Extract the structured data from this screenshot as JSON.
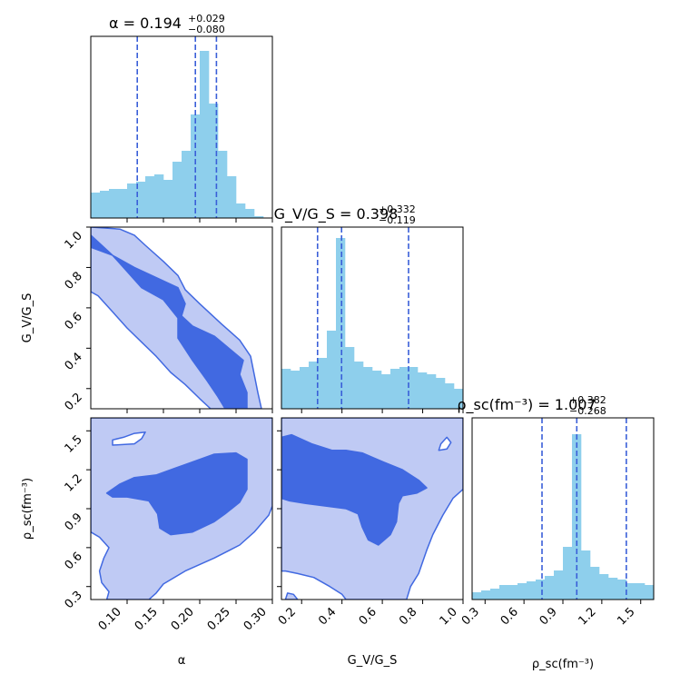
{
  "figure": {
    "colors": {
      "hist_fill": "#8ecfec",
      "quantile_line": "#3a5fd8",
      "contour_inner": "#4169e1",
      "contour_outer": "#bfcaf4",
      "contour_edge": "#4169e1"
    }
  },
  "chart_data": [
    {
      "id": "hist-alpha",
      "type": "bar",
      "title_main": "α = 0.194",
      "title_sup": "+0.029",
      "title_sub": "−0.080",
      "xlim": [
        0.05,
        0.3
      ],
      "bin_width": 0.0125,
      "bins_start": [
        0.05,
        0.0625,
        0.075,
        0.0875,
        0.1,
        0.1125,
        0.125,
        0.1375,
        0.15,
        0.1625,
        0.175,
        0.1875,
        0.2,
        0.2125,
        0.225,
        0.2375,
        0.25,
        0.2625,
        0.275,
        0.2875
      ],
      "values": [
        0.14,
        0.15,
        0.16,
        0.16,
        0.19,
        0.2,
        0.23,
        0.24,
        0.21,
        0.31,
        0.37,
        0.57,
        0.92,
        0.63,
        0.37,
        0.23,
        0.08,
        0.05,
        0.01,
        0.0
      ],
      "quantiles": [
        0.114,
        0.194,
        0.223
      ]
    },
    {
      "id": "hist-gv",
      "type": "bar",
      "title_main": "G_V/G_S = 0.398",
      "title_sup": "+0.332",
      "title_sub": "−0.119",
      "xlim": [
        0.1,
        1.0
      ],
      "bin_width": 0.045,
      "bins_start": [
        0.1,
        0.145,
        0.19,
        0.235,
        0.28,
        0.325,
        0.37,
        0.415,
        0.46,
        0.505,
        0.55,
        0.595,
        0.64,
        0.685,
        0.73,
        0.775,
        0.82,
        0.865,
        0.91,
        0.955
      ],
      "values": [
        0.22,
        0.21,
        0.23,
        0.26,
        0.28,
        0.43,
        0.94,
        0.34,
        0.26,
        0.23,
        0.21,
        0.19,
        0.22,
        0.23,
        0.23,
        0.2,
        0.19,
        0.17,
        0.14,
        0.11
      ],
      "quantiles": [
        0.279,
        0.398,
        0.73
      ]
    },
    {
      "id": "hist-rho",
      "type": "bar",
      "title_main": "ρ_sc(fm⁻³) = 1.007",
      "title_sup": "+0.382",
      "title_sub": "−0.268",
      "xlim": [
        0.2,
        1.6
      ],
      "bin_width": 0.07,
      "bins_start": [
        0.2,
        0.27,
        0.34,
        0.41,
        0.48,
        0.55,
        0.62,
        0.69,
        0.76,
        0.83,
        0.9,
        0.97,
        1.04,
        1.11,
        1.18,
        1.25,
        1.32,
        1.39,
        1.46,
        1.53
      ],
      "values": [
        0.04,
        0.05,
        0.06,
        0.08,
        0.08,
        0.09,
        0.1,
        0.11,
        0.13,
        0.16,
        0.29,
        0.91,
        0.27,
        0.18,
        0.14,
        0.12,
        0.11,
        0.09,
        0.09,
        0.08
      ],
      "quantiles": [
        0.739,
        1.007,
        1.389
      ]
    },
    {
      "id": "contour-gv-alpha",
      "type": "contour",
      "x_param": "alpha",
      "y_param": "gv",
      "xlim": [
        0.05,
        0.3
      ],
      "ylim": [
        0.1,
        1.0
      ],
      "outer": [
        [
          0.05,
          0.68
        ],
        [
          0.06,
          0.66
        ],
        [
          0.08,
          0.58
        ],
        [
          0.1,
          0.5
        ],
        [
          0.12,
          0.43
        ],
        [
          0.14,
          0.36
        ],
        [
          0.16,
          0.28
        ],
        [
          0.18,
          0.22
        ],
        [
          0.2,
          0.15
        ],
        [
          0.215,
          0.1
        ],
        [
          0.285,
          0.1
        ],
        [
          0.28,
          0.18
        ],
        [
          0.275,
          0.27
        ],
        [
          0.27,
          0.36
        ],
        [
          0.255,
          0.44
        ],
        [
          0.23,
          0.52
        ],
        [
          0.2,
          0.62
        ],
        [
          0.18,
          0.69
        ],
        [
          0.17,
          0.76
        ],
        [
          0.15,
          0.83
        ],
        [
          0.125,
          0.91
        ],
        [
          0.11,
          0.96
        ],
        [
          0.09,
          0.99
        ],
        [
          0.05,
          1.0
        ]
      ],
      "inner": [
        [
          0.05,
          0.96
        ],
        [
          0.05,
          0.9
        ],
        [
          0.08,
          0.86
        ],
        [
          0.1,
          0.78
        ],
        [
          0.12,
          0.7
        ],
        [
          0.15,
          0.64
        ],
        [
          0.17,
          0.55
        ],
        [
          0.17,
          0.45
        ],
        [
          0.19,
          0.34
        ],
        [
          0.21,
          0.24
        ],
        [
          0.225,
          0.16
        ],
        [
          0.235,
          0.1
        ],
        [
          0.265,
          0.1
        ],
        [
          0.265,
          0.18
        ],
        [
          0.255,
          0.27
        ],
        [
          0.26,
          0.34
        ],
        [
          0.24,
          0.4
        ],
        [
          0.22,
          0.46
        ],
        [
          0.19,
          0.51
        ],
        [
          0.175,
          0.56
        ],
        [
          0.18,
          0.62
        ],
        [
          0.17,
          0.7
        ],
        [
          0.14,
          0.75
        ],
        [
          0.11,
          0.8
        ],
        [
          0.08,
          0.86
        ]
      ]
    },
    {
      "id": "contour-rho-alpha",
      "type": "contour",
      "x_param": "alpha",
      "y_param": "rho",
      "xlim": [
        0.05,
        0.3
      ],
      "ylim": [
        0.2,
        1.6
      ],
      "outer": [
        [
          0.05,
          1.6
        ],
        [
          0.3,
          1.6
        ],
        [
          0.3,
          0.92
        ],
        [
          0.295,
          0.85
        ],
        [
          0.275,
          0.72
        ],
        [
          0.255,
          0.62
        ],
        [
          0.22,
          0.52
        ],
        [
          0.18,
          0.42
        ],
        [
          0.15,
          0.32
        ],
        [
          0.14,
          0.25
        ],
        [
          0.13,
          0.2
        ],
        [
          0.072,
          0.2
        ],
        [
          0.075,
          0.26
        ],
        [
          0.065,
          0.33
        ],
        [
          0.062,
          0.42
        ],
        [
          0.068,
          0.52
        ],
        [
          0.075,
          0.6
        ],
        [
          0.062,
          0.68
        ],
        [
          0.05,
          0.72
        ]
      ],
      "hole": [
        [
          0.08,
          1.39
        ],
        [
          0.11,
          1.4
        ],
        [
          0.12,
          1.44
        ],
        [
          0.125,
          1.49
        ],
        [
          0.11,
          1.48
        ],
        [
          0.095,
          1.45
        ],
        [
          0.08,
          1.43
        ]
      ],
      "inner": [
        [
          0.072,
          1.02
        ],
        [
          0.09,
          1.09
        ],
        [
          0.11,
          1.14
        ],
        [
          0.14,
          1.16
        ],
        [
          0.165,
          1.21
        ],
        [
          0.19,
          1.26
        ],
        [
          0.22,
          1.32
        ],
        [
          0.25,
          1.33
        ],
        [
          0.265,
          1.28
        ],
        [
          0.265,
          1.05
        ],
        [
          0.255,
          0.95
        ],
        [
          0.235,
          0.86
        ],
        [
          0.22,
          0.8
        ],
        [
          0.19,
          0.72
        ],
        [
          0.16,
          0.7
        ],
        [
          0.145,
          0.75
        ],
        [
          0.142,
          0.86
        ],
        [
          0.13,
          0.96
        ],
        [
          0.1,
          0.99
        ],
        [
          0.08,
          0.99
        ]
      ]
    },
    {
      "id": "contour-rho-gv",
      "type": "contour",
      "x_param": "gv",
      "y_param": "rho",
      "xlim": [
        0.1,
        1.0
      ],
      "ylim": [
        0.2,
        1.6
      ],
      "outer": [
        [
          0.1,
          1.6
        ],
        [
          1.0,
          1.6
        ],
        [
          1.0,
          1.05
        ],
        [
          0.95,
          0.98
        ],
        [
          0.9,
          0.85
        ],
        [
          0.85,
          0.7
        ],
        [
          0.82,
          0.58
        ],
        [
          0.78,
          0.4
        ],
        [
          0.74,
          0.3
        ],
        [
          0.72,
          0.2
        ],
        [
          0.42,
          0.2
        ],
        [
          0.4,
          0.24
        ],
        [
          0.34,
          0.3
        ],
        [
          0.26,
          0.37
        ],
        [
          0.18,
          0.4
        ],
        [
          0.12,
          0.42
        ],
        [
          0.1,
          0.42
        ]
      ],
      "hole": [
        [
          0.12,
          0.2
        ],
        [
          0.18,
          0.2
        ],
        [
          0.16,
          0.24
        ],
        [
          0.13,
          0.25
        ]
      ],
      "hole2": [
        [
          0.88,
          1.35
        ],
        [
          0.92,
          1.36
        ],
        [
          0.94,
          1.41
        ],
        [
          0.92,
          1.45
        ],
        [
          0.89,
          1.4
        ]
      ],
      "inner": [
        [
          0.1,
          1.45
        ],
        [
          0.15,
          1.47
        ],
        [
          0.25,
          1.4
        ],
        [
          0.35,
          1.35
        ],
        [
          0.42,
          1.35
        ],
        [
          0.5,
          1.33
        ],
        [
          0.56,
          1.29
        ],
        [
          0.62,
          1.25
        ],
        [
          0.7,
          1.2
        ],
        [
          0.78,
          1.12
        ],
        [
          0.82,
          1.06
        ],
        [
          0.77,
          1.02
        ],
        [
          0.7,
          1.0
        ],
        [
          0.68,
          0.94
        ],
        [
          0.67,
          0.8
        ],
        [
          0.64,
          0.7
        ],
        [
          0.58,
          0.62
        ],
        [
          0.53,
          0.66
        ],
        [
          0.5,
          0.76
        ],
        [
          0.48,
          0.86
        ],
        [
          0.42,
          0.9
        ],
        [
          0.32,
          0.92
        ],
        [
          0.22,
          0.94
        ],
        [
          0.14,
          0.96
        ],
        [
          0.1,
          0.98
        ]
      ]
    }
  ],
  "axes": {
    "alpha": {
      "label": "α",
      "ticks": [
        0.1,
        0.15,
        0.2,
        0.25,
        0.3
      ],
      "tick_labels": [
        "0.10",
        "0.15",
        "0.20",
        "0.25",
        "0.30"
      ]
    },
    "gv": {
      "label": "G_V/G_S",
      "x_ticks": [
        0.2,
        0.4,
        0.6,
        0.8,
        1.0
      ],
      "x_tick_labels": [
        "0.2",
        "0.4",
        "0.6",
        "0.8",
        "1.0"
      ],
      "y_ticks": [
        0.2,
        0.4,
        0.6,
        0.8,
        1.0
      ],
      "y_tick_labels": [
        "0.2",
        "0.4",
        "0.6",
        "0.8",
        "1.0"
      ]
    },
    "rho": {
      "label": "ρ_sc(fm⁻³)",
      "ticks": [
        0.3,
        0.6,
        0.9,
        1.2,
        1.5
      ],
      "tick_labels": [
        "0.3",
        "0.6",
        "0.9",
        "1.2",
        "1.5"
      ]
    }
  }
}
